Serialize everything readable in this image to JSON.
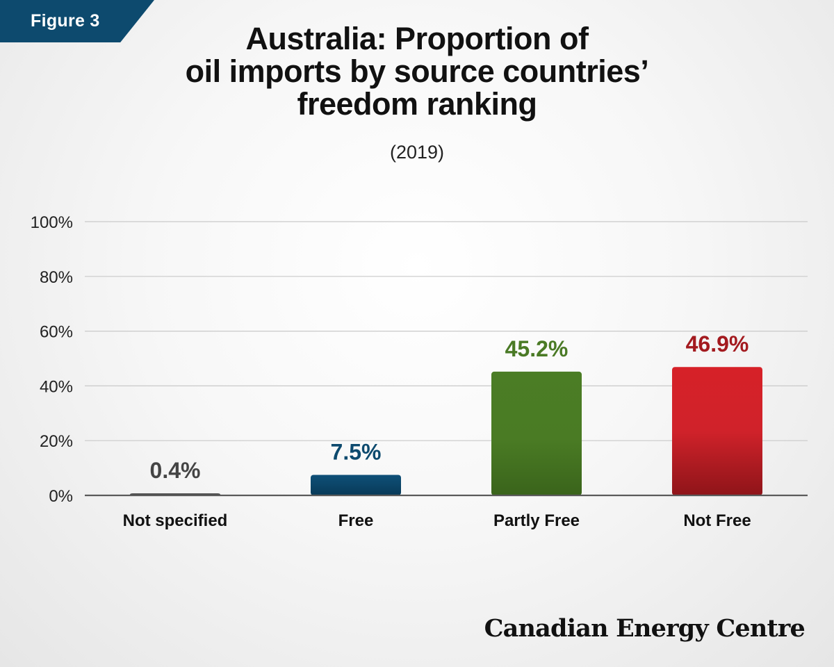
{
  "figure_label": "Figure 3",
  "title_lines": [
    "Australia: Proportion of",
    "oil imports by source countries’",
    "freedom ranking"
  ],
  "subtitle": "(2019)",
  "logo_text": "Canadian Energy Centre",
  "colors": {
    "figure_tag": "#0d4a6e",
    "not_specified": "#555555",
    "free": "#0d4a6e",
    "partly_free": "#477a23",
    "not_free": "#d2222b",
    "label_not_specified": "#444444",
    "label_free": "#0d4a6e",
    "label_partly_free": "#4a7a25",
    "label_not_free": "#a31a1f"
  },
  "chart_data": {
    "type": "bar",
    "categories": [
      "Not specified",
      "Free",
      "Partly Free",
      "Not Free"
    ],
    "values": [
      0.4,
      7.5,
      45.2,
      46.9
    ],
    "data_labels": [
      "0.4%",
      "7.5%",
      "45.2%",
      "46.9%"
    ],
    "ylim": [
      0,
      100
    ],
    "yticks": [
      0,
      20,
      40,
      60,
      80,
      100
    ],
    "ytick_labels": [
      "0%",
      "20%",
      "40%",
      "60%",
      "80%",
      "100%"
    ],
    "grid": true,
    "legend": "none"
  }
}
